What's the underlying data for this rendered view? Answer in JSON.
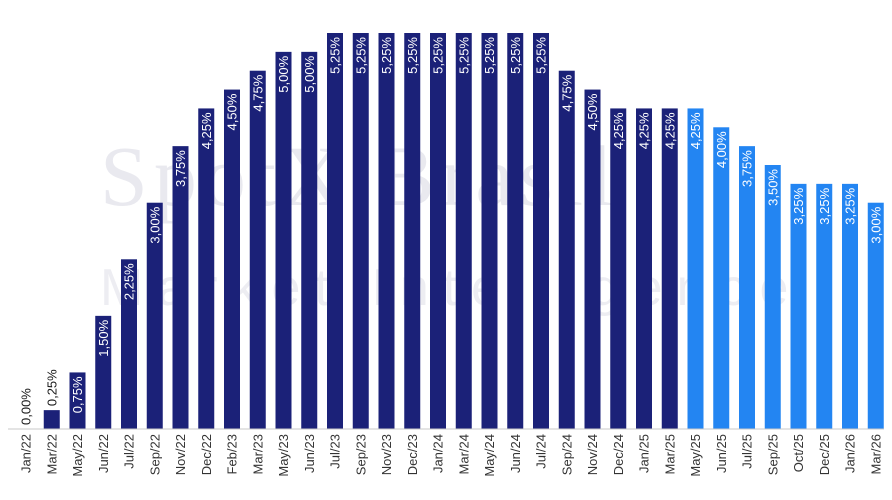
{
  "watermark": {
    "line1": "SpotX Brasil",
    "line2": "Market Intelligence"
  },
  "chart_data": {
    "type": "bar",
    "title": "",
    "xlabel": "",
    "ylabel": "",
    "ylim": [
      0,
      5.25
    ],
    "grid": false,
    "legend": "none",
    "colors": {
      "actual": "#1b2178",
      "forecast": "#2385f2",
      "label_light": "#ffffff",
      "label_dark": "#1a1a1a",
      "axis": "#c8c8c8"
    },
    "categories": [
      "Jan/22",
      "Mar/22",
      "May/22",
      "Jun/22",
      "Jul/22",
      "Sep/22",
      "Nov/22",
      "Dec/22",
      "Feb/23",
      "Mar/23",
      "May/23",
      "Jun/23",
      "Jul/23",
      "Sep/23",
      "Nov/23",
      "Dec/23",
      "Jan/24",
      "Mar/24",
      "May/24",
      "Jun/24",
      "Jul/24",
      "Sep/24",
      "Nov/24",
      "Dec/24",
      "Jan/25",
      "Mar/25",
      "May/25",
      "Jun/25",
      "Jul/25",
      "Sep/25",
      "Oct/25",
      "Dec/25",
      "Jan/26",
      "Mar/26"
    ],
    "values": [
      0.0,
      0.25,
      0.75,
      1.5,
      2.25,
      3.0,
      3.75,
      4.25,
      4.5,
      4.75,
      5.0,
      5.0,
      5.25,
      5.25,
      5.25,
      5.25,
      5.25,
      5.25,
      5.25,
      5.25,
      5.25,
      4.75,
      4.5,
      4.25,
      4.25,
      4.25,
      4.25,
      4.0,
      3.75,
      3.5,
      3.25,
      3.25,
      3.25,
      3.0
    ],
    "labels": [
      "0,00%",
      "0,25%",
      "0,75%",
      "1,50%",
      "2,25%",
      "3,00%",
      "3,75%",
      "4,25%",
      "4,50%",
      "4,75%",
      "5,00%",
      "5,00%",
      "5,25%",
      "5,25%",
      "5,25%",
      "5,25%",
      "5,25%",
      "5,25%",
      "5,25%",
      "5,25%",
      "5,25%",
      "4,75%",
      "4,50%",
      "4,25%",
      "4,25%",
      "4,25%",
      "4,25%",
      "4,00%",
      "3,75%",
      "3,50%",
      "3,25%",
      "3,25%",
      "3,25%",
      "3,00%"
    ],
    "forecast_from_index": 26
  }
}
